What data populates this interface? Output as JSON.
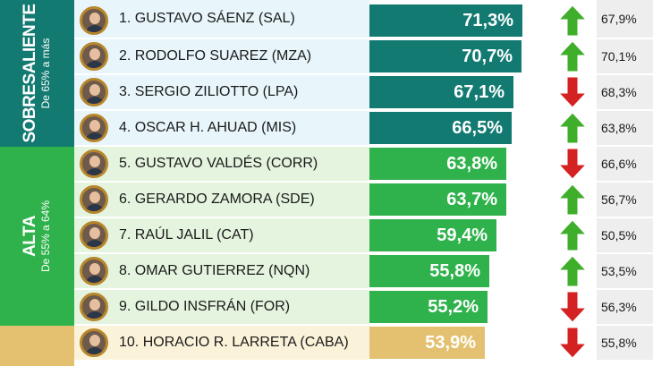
{
  "bands": [
    {
      "title": "SOBRESALIENTE",
      "subtitle": "De 65% a más",
      "color": "#137a72",
      "rowColor": "#e8f6fb"
    },
    {
      "title": "ALTA",
      "subtitle": "De 55% a 64%",
      "color": "#2fb24c",
      "rowColor": "#e4f4de"
    },
    {
      "title": "",
      "subtitle": "",
      "color": "#e3c170",
      "rowColor": "#fbf3d9"
    }
  ],
  "colors": {
    "up": "#3fae2a",
    "down": "#d42121"
  },
  "chart_data": {
    "type": "bar",
    "categories": [
      "1. GUSTAVO SÁENZ (SAL)",
      "2. RODOLFO SUAREZ (MZA)",
      "3. SERGIO ZILIOTTO (LPA)",
      "4. OSCAR H. AHUAD  (MIS)",
      "5. GUSTAVO VALDÉS  (CORR)",
      "6. GERARDO ZAMORA (SDE)",
      "7. RAÚL JALIL (CAT)",
      "8. OMAR GUTIERREZ (NQN)",
      "9. GILDO INSFRÁN (FOR)",
      "10. HORACIO R. LARRETA (CABA)"
    ],
    "values": [
      71.3,
      70.7,
      67.1,
      66.5,
      63.8,
      63.7,
      59.4,
      55.8,
      55.2,
      53.9
    ],
    "value_labels": [
      "71,3%",
      "70,7%",
      "67,1%",
      "66,5%",
      "63,8%",
      "63,7%",
      "59,4%",
      "55,8%",
      "55,2%",
      "53,9%"
    ],
    "previous": [
      "67,9%",
      "70,1%",
      "68,3%",
      "63,8%",
      "66,6%",
      "56,7%",
      "50,5%",
      "53,5%",
      "56,3%",
      "55,8%"
    ],
    "trend": [
      "up",
      "up",
      "down",
      "up",
      "down",
      "up",
      "up",
      "up",
      "down",
      "down"
    ],
    "band_index": [
      0,
      0,
      0,
      0,
      1,
      1,
      1,
      1,
      1,
      2
    ]
  }
}
